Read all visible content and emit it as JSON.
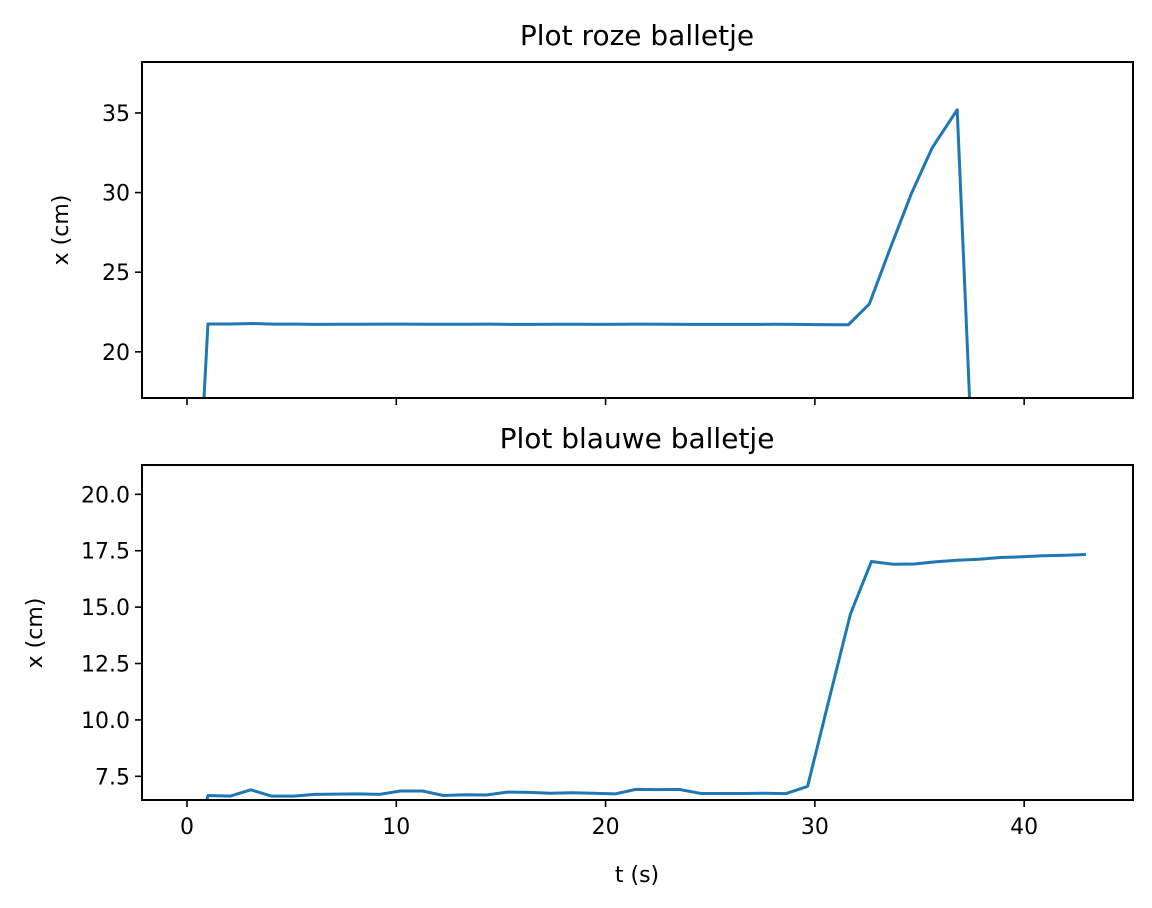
{
  "chart_data": [
    {
      "type": "line",
      "title": "Plot roze balletje",
      "xlabel": "",
      "ylabel": "x (cm)",
      "xlim": [
        -2.15,
        45.2
      ],
      "ylim": [
        17.1,
        38.2
      ],
      "xticks": [
        0,
        10,
        20,
        30,
        40
      ],
      "yticks": [
        20,
        25,
        30,
        35
      ],
      "ytick_labels": [
        "20",
        "25",
        "30",
        "35"
      ],
      "show_xtick_labels": false,
      "grid": false,
      "color": "#1f77b4",
      "series": [
        {
          "x": [
            0.8,
            1.0,
            2.1,
            3.1,
            4.1,
            5.2,
            6.2,
            7.3,
            8.3,
            9.3,
            10.4,
            11.4,
            12.5,
            13.5,
            14.5,
            15.6,
            16.6,
            17.7,
            18.7,
            19.7,
            20.8,
            21.8,
            22.9,
            23.9,
            24.9,
            26.0,
            27.0,
            28.1,
            29.1,
            30.1,
            31.2,
            31.6,
            32.6,
            33.6,
            34.6,
            35.6,
            36.8,
            37.4
          ],
          "y": [
            16.8,
            21.75,
            21.75,
            21.78,
            21.74,
            21.74,
            21.72,
            21.73,
            21.73,
            21.74,
            21.74,
            21.73,
            21.73,
            21.73,
            21.74,
            21.72,
            21.72,
            21.73,
            21.73,
            21.72,
            21.73,
            21.74,
            21.73,
            21.72,
            21.72,
            21.72,
            21.72,
            21.73,
            21.72,
            21.71,
            21.7,
            21.7,
            23.0,
            26.5,
            29.9,
            32.8,
            35.2,
            16.8
          ]
        }
      ]
    },
    {
      "type": "line",
      "title": "Plot blauwe balletje",
      "xlabel": "t (s)",
      "ylabel": "x (cm)",
      "xlim": [
        -2.15,
        45.2
      ],
      "ylim": [
        6.45,
        21.3
      ],
      "xticks": [
        0,
        10,
        20,
        30,
        40
      ],
      "xtick_labels": [
        "0",
        "10",
        "20",
        "30",
        "40"
      ],
      "yticks": [
        7.5,
        10.0,
        12.5,
        15.0,
        17.5,
        20.0
      ],
      "ytick_labels": [
        "7.5",
        "10.0",
        "12.5",
        "15.0",
        "17.5",
        "20.0"
      ],
      "show_xtick_labels": true,
      "grid": false,
      "color": "#1f77b4",
      "series": [
        {
          "x": [
            0.95,
            1.0,
            2.05,
            3.05,
            4.05,
            5.1,
            6.1,
            7.15,
            8.15,
            9.2,
            10.2,
            11.25,
            12.25,
            13.3,
            14.3,
            15.3,
            16.35,
            17.35,
            18.4,
            19.4,
            20.45,
            21.45,
            22.5,
            23.5,
            24.55,
            25.55,
            26.55,
            27.6,
            28.6,
            29.65,
            30.65,
            31.7,
            32.7,
            33.75,
            34.75,
            35.8,
            36.8,
            37.85,
            38.85,
            39.9,
            40.9,
            41.95,
            42.95
          ],
          "y": [
            6.45,
            6.65,
            6.62,
            6.9,
            6.62,
            6.62,
            6.7,
            6.71,
            6.72,
            6.7,
            6.85,
            6.85,
            6.65,
            6.68,
            6.67,
            6.8,
            6.79,
            6.75,
            6.77,
            6.75,
            6.72,
            6.92,
            6.91,
            6.92,
            6.74,
            6.74,
            6.74,
            6.75,
            6.73,
            7.05,
            10.8,
            14.7,
            17.02,
            16.9,
            16.91,
            17.01,
            17.08,
            17.12,
            17.2,
            17.23,
            17.28,
            17.3,
            17.33
          ]
        }
      ]
    }
  ]
}
